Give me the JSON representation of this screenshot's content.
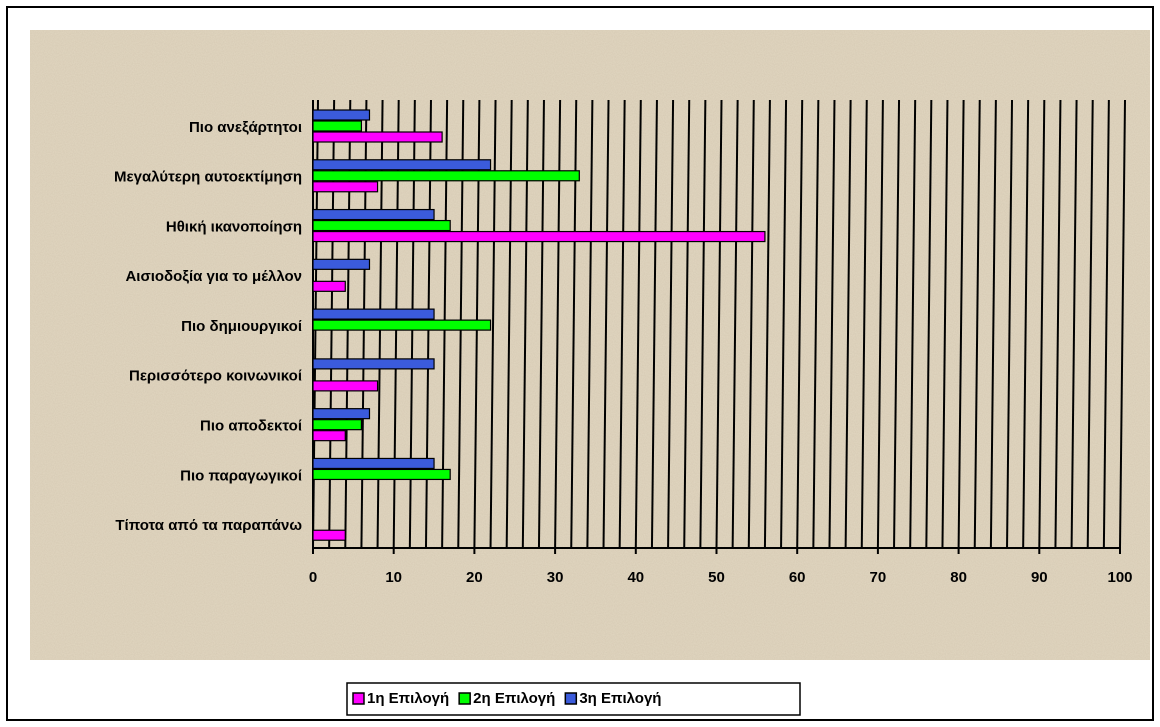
{
  "chart_data": {
    "type": "bar",
    "orientation": "horizontal",
    "categories": [
      "Πιο ανεξάρτητοι",
      "Μεγαλύτερη αυτοεκτίμηση",
      "Ηθική ικανοποίηση",
      "Αισιοδοξία για το μέλλον",
      "Πιο δημιουργικοί",
      "Περισσότερο κοινωνικοί",
      "Πιο αποδεκτοί",
      "Πιο παραγωγικοί",
      "Τίποτα από τα παραπάνω"
    ],
    "series": [
      {
        "name": "1η Επιλογή",
        "color": "#ff00ff",
        "values": [
          16,
          8,
          56,
          4,
          0,
          8,
          4,
          0,
          4
        ]
      },
      {
        "name": "2η Επιλογή",
        "color": "#00ff00",
        "values": [
          6,
          33,
          17,
          0,
          22,
          0,
          6,
          17,
          0
        ]
      },
      {
        "name": "3η Επιλογή",
        "color": "#3b5bdb",
        "values": [
          7,
          22,
          15,
          7,
          15,
          15,
          7,
          15,
          0
        ]
      }
    ],
    "xlim": [
      0,
      100
    ],
    "xticks": [
      0,
      10,
      20,
      30,
      40,
      50,
      60,
      70,
      80,
      90,
      100
    ],
    "grid": true,
    "legend": "bottom"
  }
}
